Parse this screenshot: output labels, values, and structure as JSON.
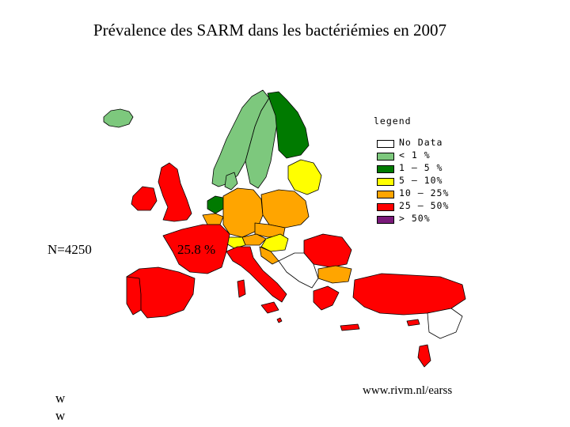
{
  "title": "Prévalence des SARM dans les bactériémies en 2007",
  "legend": {
    "title": "legend",
    "items": [
      {
        "label": "No Data",
        "color": "#ffffff"
      },
      {
        "label": "< 1 %",
        "color": "#7dc87d"
      },
      {
        "label": "1 – 5 %",
        "color": "#007a00"
      },
      {
        "label": "5 – 10%",
        "color": "#ffff00"
      },
      {
        "label": "10 – 25%",
        "color": "#ffa500"
      },
      {
        "label": "25 – 50%",
        "color": "#ff0000"
      },
      {
        "label": "> 50%",
        "color": "#7a1a7a"
      }
    ]
  },
  "n_label": "N=4250",
  "pct_label": "25.8 %",
  "url": "www.rivm.nl/earss",
  "footer": [
    "w",
    "w"
  ],
  "colors": {
    "no_data": "#ffffff",
    "lt1": "#7dc87d",
    "p1_5": "#007a00",
    "p5_10": "#ffff00",
    "p10_25": "#ffa500",
    "p25_50": "#ff0000",
    "gt50": "#7a1a7a",
    "border": "#000000"
  }
}
